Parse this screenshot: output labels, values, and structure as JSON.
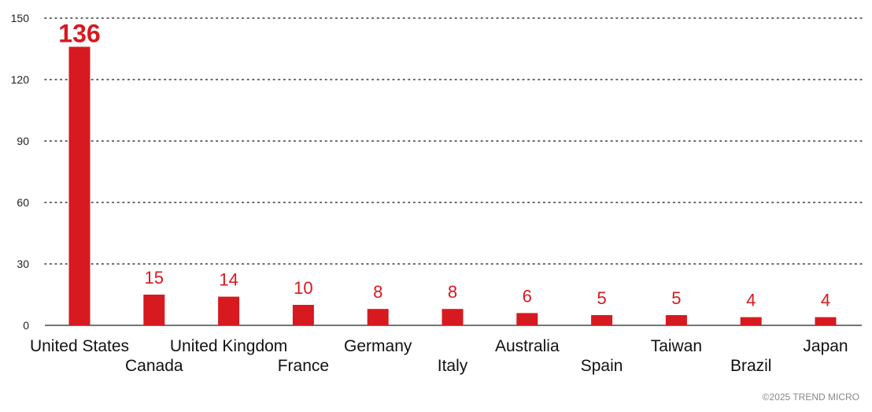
{
  "chart_data": {
    "type": "bar",
    "categories": [
      "United States",
      "Canada",
      "United Kingdom",
      "France",
      "Germany",
      "Italy",
      "Australia",
      "Spain",
      "Taiwan",
      "Brazil",
      "Japan"
    ],
    "values": [
      136,
      15,
      14,
      10,
      8,
      8,
      6,
      5,
      5,
      4,
      4
    ],
    "ylim": [
      0,
      150
    ],
    "yticks": [
      0,
      30,
      60,
      90,
      120,
      150
    ],
    "grid": true,
    "bar_color": "#d71920",
    "label_color": "#d71920"
  },
  "footer": {
    "copyright": "©2025 TREND MICRO"
  }
}
